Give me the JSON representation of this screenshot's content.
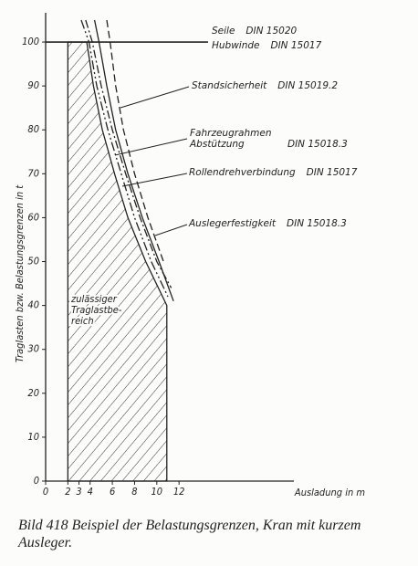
{
  "chart_data": {
    "type": "line",
    "x_label": "Ausladung in m",
    "y_label": "Traglasten bzw. Belastungsgrenzen in t",
    "xlim": [
      0,
      22
    ],
    "ylim": [
      0,
      105
    ],
    "xticks": [
      0,
      2,
      3,
      4,
      6,
      8,
      10,
      12
    ],
    "yticks": [
      0,
      10,
      20,
      30,
      40,
      50,
      60,
      70,
      80,
      90,
      100
    ],
    "region": {
      "label_lines": [
        "zulässiger",
        "Traglastbe-",
        "reich"
      ],
      "x": [
        2,
        2,
        3.7,
        4.3,
        5.1,
        6.2,
        7.4,
        9,
        10.9,
        10.9
      ],
      "values": [
        0,
        100,
        100,
        90,
        80,
        70,
        60,
        50,
        40,
        0
      ]
    },
    "series": [
      {
        "name": "Seile",
        "standard": "DIN 15020",
        "color": "#222",
        "x": [
          0,
          14.6
        ],
        "values": [
          100,
          100
        ]
      },
      {
        "name": "Hubwinde",
        "standard": "DIN 15017",
        "color": "#222",
        "x": [
          0,
          14.6
        ],
        "values": [
          100,
          100
        ]
      },
      {
        "name": "Standsicherheit",
        "standard": "DIN 15019.2",
        "color": "#222",
        "x": [
          3.6,
          4.2,
          5.0,
          6.0,
          7.2,
          8.5,
          10,
          11.3
        ],
        "values": [
          105,
          100,
          90,
          80,
          70,
          60,
          50,
          44
        ]
      },
      {
        "name": "Fahrzeugrahmen Abstützung",
        "standard": "DIN 15018.3",
        "color": "#222",
        "x": [
          3.2,
          3.9,
          4.6,
          5.6,
          6.8,
          8.0,
          9.5,
          11.0
        ],
        "values": [
          105,
          100,
          90,
          80,
          70,
          60,
          50,
          42
        ]
      },
      {
        "name": "Rollendrehverbindung",
        "standard": "DIN 15017",
        "color": "#222",
        "x": [
          4.4,
          4.8,
          5.5,
          6.3,
          7.4,
          8.7,
          10.2,
          11.5
        ],
        "values": [
          105,
          100,
          90,
          80,
          70,
          60,
          50,
          41
        ]
      },
      {
        "name": "Auslegerfestigkeit",
        "standard": "DIN 15018.3",
        "color": "#222",
        "x": [
          5.5,
          5.8,
          6.3,
          7.0,
          8.0,
          9.2,
          10.6
        ],
        "values": [
          105,
          100,
          90,
          80,
          70,
          60,
          50
        ]
      }
    ],
    "caption": "Bild 418 Beispiel der Belastungsgrenzen, Kran mit kurzem Ausleger."
  }
}
